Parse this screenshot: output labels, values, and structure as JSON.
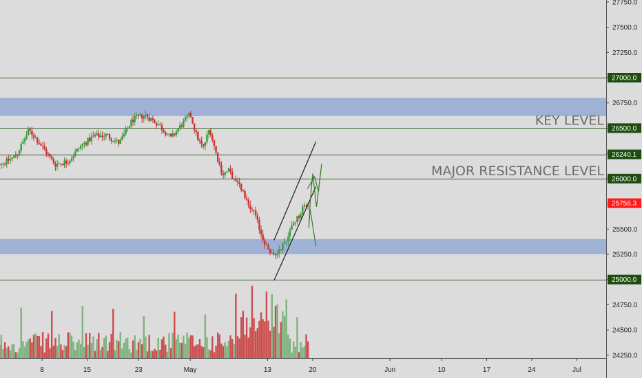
{
  "chart_data": {
    "type": "candlestick",
    "x_axis": {
      "ticks": [
        {
          "label": "8",
          "day": 8
        },
        {
          "label": "15",
          "day": 15
        },
        {
          "label": "23",
          "day": 23
        },
        {
          "label": "May",
          "day": 31
        },
        {
          "label": "13",
          "day": 43
        },
        {
          "label": "20",
          "day": 50
        },
        {
          "label": "Jun",
          "day": 62
        },
        {
          "label": "10",
          "day": 70
        },
        {
          "label": "17",
          "day": 77
        },
        {
          "label": "24",
          "day": 84
        },
        {
          "label": "Jul",
          "day": 91
        }
      ]
    },
    "y_axis": {
      "range": [
        24150,
        27800
      ],
      "ticks": [
        24250,
        24500,
        24750,
        25000,
        25250,
        25500,
        25750,
        26000,
        26250,
        26500,
        26750,
        27000,
        27250,
        27500,
        27750
      ],
      "tick_labels": [
        "24250.0",
        "24500.0",
        "24750.0",
        "25000.0",
        "25250.0",
        "25500.0",
        "25750.0",
        "26000.0",
        "26250.0",
        "26500.0",
        "26750.0",
        "27000.0",
        "27250.0",
        "27500.0",
        "27750.0"
      ]
    },
    "horizontal_levels": [
      {
        "value": 27000,
        "label": "27000.0",
        "badge_color": "#1e4d0f"
      },
      {
        "value": 26500,
        "label": "26500.0",
        "badge_color": "#1e4d0f"
      },
      {
        "value": 26240.1,
        "label": "26240.1",
        "badge_color": "#1e4d0f"
      },
      {
        "value": 26000,
        "label": "26000.0",
        "badge_color": "#1e4d0f"
      },
      {
        "value": 25000,
        "label": "25000.0",
        "badge_color": "#1e4d0f"
      }
    ],
    "last_price": {
      "value": 25756.3,
      "label": "25756.3",
      "color": "#ff1a1a"
    },
    "zones": [
      {
        "from": 26620,
        "to": 26800,
        "color": "#9fb2d6"
      },
      {
        "from": 25250,
        "to": 25400,
        "color": "#9fb2d6"
      }
    ],
    "annotations": [
      {
        "text": "KEY LEVEL",
        "value": 26500
      },
      {
        "text": "MAJOR RESISTANCE LEVEL",
        "value": 26000
      }
    ],
    "trendlines": [
      {
        "from": [
          44,
          25390
        ],
        "to": [
          50.5,
          26365
        ],
        "color": "#1a1a1a"
      },
      {
        "from": [
          44,
          24990
        ],
        "to": [
          50.5,
          25920
        ],
        "color": "#1a1a1a"
      }
    ],
    "projection_path": {
      "color": "#3a7a2a",
      "points": [
        [
          49.2,
          25900
        ],
        [
          50.3,
          26020
        ],
        [
          50.9,
          25870
        ],
        [
          51.4,
          26150
        ],
        [
          50.6,
          25720
        ],
        [
          50,
          26050
        ],
        [
          49.6,
          25750
        ],
        [
          49.4,
          25510
        ],
        [
          49.6,
          25700
        ],
        [
          50.5,
          25330
        ]
      ]
    },
    "colors": {
      "up": "#3d9a3d",
      "down": "#c83232",
      "level_line": "#2e5e1f",
      "volume_up": "#7fb27f",
      "volume_down": "#cc4d4d"
    },
    "price_path": [
      [
        0,
        26180
      ],
      [
        2,
        26150
      ],
      [
        4,
        26230
      ],
      [
        6,
        26480
      ],
      [
        8,
        26320
      ],
      [
        10,
        26140
      ],
      [
        12,
        26170
      ],
      [
        14,
        26320
      ],
      [
        16,
        26420
      ],
      [
        18,
        26430
      ],
      [
        20,
        26350
      ],
      [
        22,
        26580
      ],
      [
        24,
        26630
      ],
      [
        26,
        26540
      ],
      [
        28,
        26400
      ],
      [
        30,
        26560
      ],
      [
        31,
        26640
      ],
      [
        32,
        26420
      ],
      [
        33,
        26300
      ],
      [
        34,
        26500
      ],
      [
        35,
        26250
      ],
      [
        36,
        26040
      ],
      [
        37,
        26080
      ],
      [
        38,
        25960
      ],
      [
        39,
        25900
      ],
      [
        40,
        25720
      ],
      [
        41,
        25650
      ],
      [
        42,
        25450
      ],
      [
        43,
        25300
      ],
      [
        44,
        25230
      ],
      [
        45,
        25310
      ],
      [
        46,
        25400
      ],
      [
        47,
        25560
      ],
      [
        48,
        25640
      ],
      [
        48.5,
        25720
      ],
      [
        49,
        25750
      ],
      [
        49.4,
        25756.3
      ]
    ]
  }
}
